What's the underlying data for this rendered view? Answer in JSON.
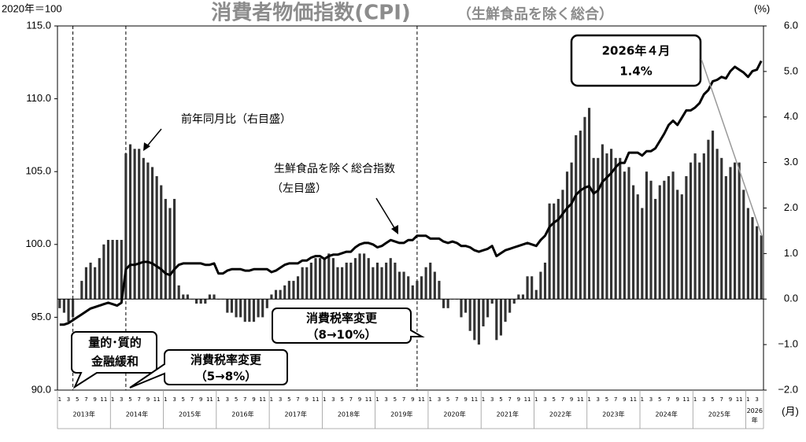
{
  "chart_data": {
    "type": "bar-line",
    "title": "消費者物価指数(CPI)",
    "subtitle": "（生鮮食品を除く総合）",
    "ylabel": "2020年＝100",
    "y2label": "(%)",
    "xlabel": "(月)",
    "categories": [
      "1",
      null,
      "3",
      null,
      "5",
      null,
      "7",
      null,
      "9",
      null,
      "11",
      null,
      "1",
      null,
      "3",
      null,
      "5",
      null,
      "7",
      null,
      "9",
      null,
      "11",
      null,
      "1",
      null,
      "3",
      null,
      "5",
      null,
      "7",
      null,
      "9",
      null,
      "11",
      null,
      "1",
      null,
      "3",
      null,
      "5",
      null,
      "7",
      null,
      "9",
      null,
      "11",
      null,
      "1",
      null,
      "3",
      null,
      "5",
      null,
      "7",
      null,
      "9",
      null,
      "11",
      null,
      "1",
      null,
      "3",
      null,
      "5",
      null,
      "7",
      null,
      "9",
      null,
      "11",
      null,
      "1",
      null,
      "3",
      null,
      "5",
      null,
      "7",
      null,
      "9",
      null,
      "11",
      null,
      "1",
      null,
      "3",
      null,
      "5",
      null,
      "7",
      null,
      "9",
      null,
      "11",
      null,
      "1",
      null,
      "3",
      null,
      "5",
      null,
      "7",
      null,
      "9",
      null,
      "11",
      null,
      "1",
      null,
      "3",
      null,
      "5",
      null,
      "7",
      null,
      "9",
      null,
      "11",
      null,
      "1",
      null,
      "3",
      null,
      "5",
      null,
      "7",
      null,
      "9",
      null,
      "11",
      null,
      "1",
      null,
      "3",
      null,
      "5",
      null,
      "7",
      null,
      "9",
      null,
      "11",
      null,
      "1",
      null,
      "3",
      null,
      "5",
      null,
      "7",
      null,
      "9",
      null,
      "11",
      null,
      "1",
      null,
      "3",
      null
    ],
    "years": [
      "2013年",
      "2014年",
      "2015年",
      "2016年",
      "2017年",
      "2018年",
      "2019年",
      "2020年",
      "2021年",
      "2022年",
      "2023年",
      "2024年",
      "2025年",
      "2026年"
    ],
    "series": [
      {
        "name": "前年同月比（右目盛）",
        "kind": "bar",
        "axis": "y2",
        "color": "#333333",
        "values": [
          -0.2,
          -0.3,
          -0.5,
          -0.4,
          0.0,
          0.4,
          0.7,
          0.8,
          0.7,
          0.9,
          1.2,
          1.3,
          1.3,
          1.3,
          1.3,
          3.2,
          3.4,
          3.3,
          3.3,
          3.1,
          3.0,
          2.9,
          2.7,
          2.5,
          2.2,
          2.0,
          2.2,
          0.3,
          0.1,
          0.1,
          0.0,
          -0.1,
          -0.1,
          -0.1,
          0.1,
          0.1,
          0.0,
          0.0,
          -0.3,
          -0.3,
          -0.4,
          -0.4,
          -0.5,
          -0.5,
          -0.5,
          -0.4,
          -0.4,
          -0.2,
          0.1,
          0.2,
          0.2,
          0.3,
          0.4,
          0.4,
          0.5,
          0.7,
          0.7,
          0.8,
          0.9,
          0.9,
          0.9,
          1.0,
          0.9,
          0.7,
          0.7,
          0.8,
          0.8,
          0.9,
          1.0,
          1.0,
          0.9,
          0.7,
          0.8,
          0.7,
          0.8,
          0.9,
          0.8,
          0.6,
          0.6,
          0.5,
          0.3,
          0.4,
          0.5,
          0.7,
          0.8,
          0.6,
          0.4,
          -0.2,
          -0.2,
          0.0,
          0.0,
          -0.4,
          -0.3,
          -0.7,
          -0.9,
          -1.0,
          -0.6,
          -0.4,
          -0.1,
          -0.9,
          -0.8,
          -0.5,
          -0.3,
          -0.1,
          0.1,
          0.1,
          0.5,
          0.5,
          0.2,
          0.6,
          0.8,
          2.1,
          2.1,
          2.2,
          2.4,
          2.8,
          3.0,
          3.6,
          3.7,
          4.0,
          4.2,
          3.1,
          3.1,
          3.4,
          3.2,
          3.3,
          3.1,
          3.1,
          2.8,
          2.9,
          2.5,
          2.3,
          2.0,
          2.8,
          2.6,
          2.2,
          2.5,
          2.6,
          2.7,
          2.8,
          2.4,
          2.3,
          2.7,
          3.0,
          3.2,
          3.0,
          3.2,
          3.5,
          3.7,
          3.3,
          3.1,
          2.7,
          2.9,
          3.0,
          3.0,
          2.4,
          2.0,
          1.8,
          1.6,
          1.4
        ]
      },
      {
        "name": "生鮮食品を除く総合指数",
        "axis_note": "（左目盛）",
        "kind": "line",
        "axis": "y",
        "color": "#000000",
        "values": [
          94.5,
          94.5,
          94.6,
          94.8,
          95.0,
          95.2,
          95.4,
          95.6,
          95.7,
          95.8,
          95.9,
          96.0,
          95.9,
          95.8,
          96.0,
          98.3,
          98.6,
          98.6,
          98.7,
          98.8,
          98.8,
          98.7,
          98.5,
          98.3,
          98.0,
          97.9,
          98.3,
          98.6,
          98.7,
          98.7,
          98.7,
          98.7,
          98.7,
          98.6,
          98.6,
          98.7,
          98.0,
          98.0,
          98.2,
          98.3,
          98.3,
          98.3,
          98.2,
          98.2,
          98.3,
          98.3,
          98.3,
          98.3,
          98.1,
          98.2,
          98.4,
          98.6,
          98.7,
          98.7,
          98.7,
          98.9,
          98.9,
          99.1,
          99.2,
          99.2,
          99.0,
          99.2,
          99.3,
          99.3,
          99.4,
          99.5,
          99.5,
          99.8,
          100.0,
          100.1,
          100.1,
          100.0,
          99.8,
          99.9,
          100.1,
          100.3,
          100.2,
          100.1,
          100.1,
          100.3,
          100.3,
          100.6,
          100.6,
          100.6,
          100.4,
          100.4,
          100.4,
          100.2,
          100.1,
          100.2,
          100.1,
          99.9,
          99.9,
          99.8,
          99.6,
          99.5,
          99.6,
          99.7,
          99.9,
          99.2,
          99.4,
          99.6,
          99.7,
          99.8,
          99.9,
          100.0,
          100.1,
          100.0,
          99.9,
          100.3,
          100.6,
          101.2,
          101.5,
          101.7,
          102.1,
          102.5,
          102.8,
          103.4,
          103.7,
          103.9,
          104.0,
          103.5,
          103.7,
          104.3,
          104.6,
          104.9,
          105.3,
          105.6,
          105.6,
          106.3,
          106.3,
          106.3,
          106.1,
          106.4,
          106.4,
          106.6,
          107.1,
          107.6,
          108.2,
          108.5,
          108.2,
          108.7,
          109.2,
          109.2,
          109.4,
          109.7,
          110.3,
          110.6,
          111.2,
          111.3,
          111.5,
          111.4,
          111.9,
          112.2,
          112.0,
          111.8,
          111.5,
          111.9,
          112.0,
          112.6
        ]
      }
    ],
    "ylim": [
      90,
      115
    ],
    "yticks": [
      {
        "value": 90,
        "label": "90.0"
      },
      {
        "value": 95,
        "label": "95.0"
      },
      {
        "value": 100,
        "label": "100.0"
      },
      {
        "value": 105,
        "label": "105.0"
      },
      {
        "value": 110,
        "label": "110.0"
      },
      {
        "value": 115,
        "label": "115.0"
      }
    ],
    "y2lim": [
      -2,
      6
    ],
    "y2ticks": [
      {
        "value": -2,
        "label": "−2.0"
      },
      {
        "value": -1,
        "label": "−1.0"
      },
      {
        "value": 0,
        "label": "0.0"
      },
      {
        "value": 1,
        "label": "1.0"
      },
      {
        "value": 2,
        "label": "2.0"
      },
      {
        "value": 3,
        "label": "3.0"
      },
      {
        "value": 4,
        "label": "4.0"
      },
      {
        "value": 5,
        "label": "5.0"
      },
      {
        "value": 6,
        "label": "6.0"
      }
    ],
    "annotations": [
      {
        "text": "2026年４月",
        "sub": "1.4%"
      },
      {
        "text": "量的･質的",
        "sub": "金融緩和"
      },
      {
        "text": "消費税率変更",
        "sub": "（5→8%）"
      },
      {
        "text": "消費税率変更",
        "sub": "（8→10%）"
      }
    ]
  }
}
